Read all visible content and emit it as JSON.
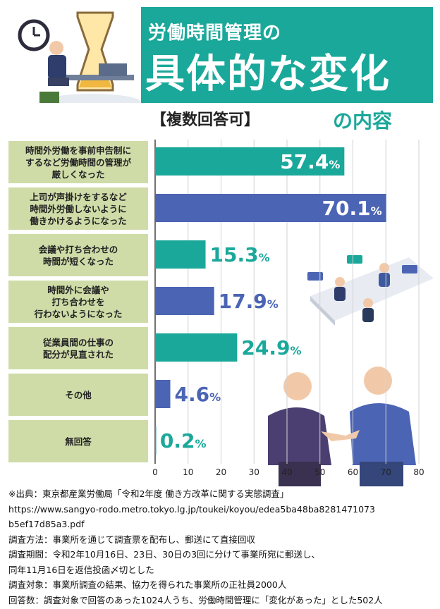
{
  "header": {
    "title_line1": "労働時間管理の",
    "title_line2": "具体的な変化",
    "subtitle": "【複数回答可】",
    "title_tail": "の内容"
  },
  "colors": {
    "teal": "#1aa89a",
    "blue": "#4b64b4",
    "label_bg": "#cfdca8"
  },
  "chart_data": {
    "type": "bar",
    "orientation": "horizontal",
    "categories": [
      "時間外労働を事前申告制にするなど労働時間の管理が厳しくなった",
      "上司が声掛けをするなど時間外労働しないように働きかけるようになった",
      "会議や打ち合わせの時間が短くなった",
      "時間外に会議や打ち合わせを行わないようになった",
      "従業員間の仕事の配分が見直された",
      "その他",
      "無回答"
    ],
    "category_lines": [
      [
        "時間外労働を事前申告制に",
        "するなど労働時間の管理が",
        "厳しくなった"
      ],
      [
        "上司が声掛けをするなど",
        "時間外労働しないように",
        "働きかけるようになった"
      ],
      [
        "会議や打ち合わせの",
        "時間が短くなった"
      ],
      [
        "時間外に会議や",
        "打ち合わせを",
        "行わないようになった"
      ],
      [
        "従業員間の仕事の",
        "配分が見直された"
      ],
      [
        "その他"
      ],
      [
        "無回答"
      ]
    ],
    "values": [
      57.4,
      70.1,
      15.3,
      17.9,
      24.9,
      4.6,
      0.2
    ],
    "value_labels": [
      "57.4",
      "70.1",
      "15.3",
      "17.9",
      "24.9",
      "4.6",
      "0.2"
    ],
    "unit": "%",
    "bar_colors": [
      "teal",
      "blue",
      "teal",
      "blue",
      "teal",
      "blue",
      "teal"
    ],
    "xlim": [
      0,
      80
    ],
    "xticks": [
      0,
      10,
      20,
      30,
      40,
      50,
      60,
      70,
      80
    ],
    "grid": true
  },
  "notes": [
    "※出典：東京都産業労働局「令和2年度 働き方改革に関する実態調査」",
    "https://www.sangyo-rodo.metro.tokyo.lg.jp/toukei/koyou/edea5ba48ba8281471073",
    "b5ef17d85a3.pdf",
    "調査方法：事業所を通じて調査票を配布し、郵送にて直接回収",
    "調査期間：令和2年10月16日、23日、30日の3回に分けて事業所宛に郵送し、",
    "同年11月16日を返信投函〆切とした",
    "調査対象：事業所調査の結果、協力を得られた事業所の正社員2000人",
    "回答数：調査対象で回答のあった1024人うち、労働時間管理に「変化があった」とした502人"
  ]
}
